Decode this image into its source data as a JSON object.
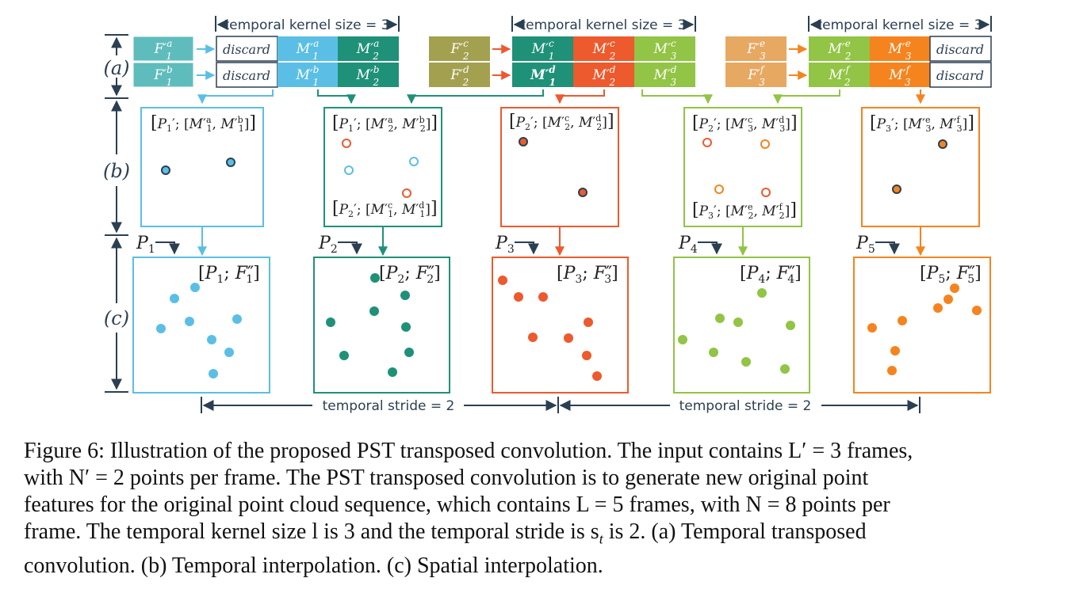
{
  "colors": {
    "blue": "#5bbfe5",
    "teal": "#1f9178",
    "red": "#ec5a2e",
    "green": "#92c445",
    "orange": "#f5841f",
    "olive": "#a3a04f",
    "tan": "#e7a862",
    "tealLight": "#5fbcbc",
    "navy": "#2b3f52"
  },
  "labels": {
    "kernel": "temporal kernel size = 3",
    "stride": "temporal stride = 2",
    "discard": "discard",
    "rowA": "(a)",
    "rowB": "(b)",
    "rowC": "(c)"
  },
  "caption": {
    "line1": "Figure 6: Illustration of the proposed PST transposed convolution. The input contains L′ = 3 frames,",
    "line2": "with N′ = 2 points per frame. The PST transposed convolution is to generate new original point",
    "line3": "features for the original point cloud sequence, which contains L = 5 frames, with N = 8 points per",
    "line4": "frame. The temporal kernel size l is 3 and the temporal stride is s",
    "line4sub": "t",
    "line4end": " is 2. (a) Temporal transposed",
    "line5": "convolution. (b) Temporal interpolation. (c) Spatial interpolation."
  }
}
